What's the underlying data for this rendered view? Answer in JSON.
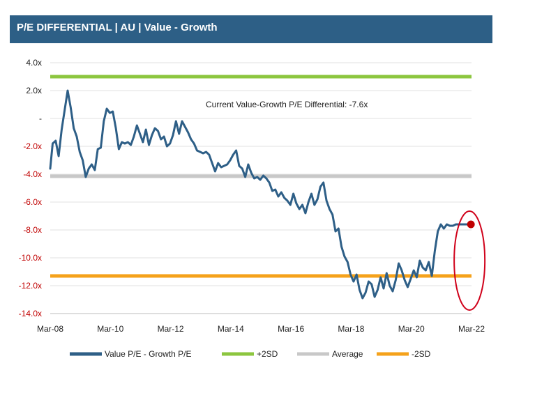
{
  "chart_data": {
    "type": "line",
    "title": "P/E DIFFERENTIAL | AU | Value - Growth",
    "xlabel": "",
    "ylabel": "",
    "ylim": [
      -14,
      4
    ],
    "y_ticks": [
      "4.0x",
      "2.0x",
      "-",
      "-2.0x",
      "-4.0x",
      "-6.0x",
      "-8.0x",
      "-10.0x",
      "-12.0x",
      "-14.0x"
    ],
    "y_tick_values": [
      4,
      2,
      0,
      -2,
      -4,
      -6,
      -8,
      -10,
      -12,
      -14
    ],
    "x_ticks": [
      "Mar-08",
      "Mar-10",
      "Mar-12",
      "Mar-14",
      "Mar-16",
      "Mar-18",
      "Mar-20",
      "Mar-22"
    ],
    "x_tick_values": [
      2008.17,
      2010.17,
      2012.17,
      2014.17,
      2016.17,
      2018.17,
      2020.17,
      2022.17
    ],
    "annotation": "Current Value-Growth P/E Differential: -7.6x",
    "colors": {
      "main": "#2e5f87",
      "plus2sd": "#8cc63f",
      "average": "#c8c8c8",
      "minus2sd": "#f5a21b",
      "current": "#c00000",
      "negative_tick": "#c00000",
      "positive_tick": "#222222"
    },
    "reference_lines": [
      {
        "name": "+2SD",
        "value": 3.0
      },
      {
        "name": "Average",
        "value": -4.15
      },
      {
        "name": "-2SD",
        "value": -11.3
      }
    ],
    "current_point": {
      "x": 2022.15,
      "y": -7.6
    },
    "series": [
      {
        "name": "Value P/E - Growth P/E",
        "x": [
          2008.17,
          2008.25,
          2008.35,
          2008.45,
          2008.55,
          2008.65,
          2008.75,
          2008.85,
          2008.95,
          2009.05,
          2009.15,
          2009.25,
          2009.35,
          2009.45,
          2009.55,
          2009.65,
          2009.75,
          2009.85,
          2009.95,
          2010.05,
          2010.15,
          2010.25,
          2010.35,
          2010.45,
          2010.55,
          2010.65,
          2010.75,
          2010.85,
          2010.95,
          2011.05,
          2011.15,
          2011.25,
          2011.35,
          2011.45,
          2011.55,
          2011.65,
          2011.75,
          2011.85,
          2011.95,
          2012.05,
          2012.15,
          2012.25,
          2012.35,
          2012.45,
          2012.55,
          2012.65,
          2012.75,
          2012.85,
          2012.95,
          2013.05,
          2013.15,
          2013.25,
          2013.35,
          2013.45,
          2013.55,
          2013.65,
          2013.75,
          2013.85,
          2013.95,
          2014.05,
          2014.15,
          2014.25,
          2014.35,
          2014.45,
          2014.55,
          2014.65,
          2014.75,
          2014.85,
          2014.95,
          2015.05,
          2015.15,
          2015.25,
          2015.35,
          2015.45,
          2015.55,
          2015.65,
          2015.75,
          2015.85,
          2015.95,
          2016.05,
          2016.15,
          2016.25,
          2016.35,
          2016.45,
          2016.55,
          2016.65,
          2016.75,
          2016.85,
          2016.95,
          2017.05,
          2017.15,
          2017.25,
          2017.35,
          2017.45,
          2017.55,
          2017.65,
          2017.75,
          2017.85,
          2017.95,
          2018.05,
          2018.15,
          2018.25,
          2018.35,
          2018.45,
          2018.55,
          2018.65,
          2018.75,
          2018.85,
          2018.95,
          2019.05,
          2019.15,
          2019.25,
          2019.35,
          2019.45,
          2019.55,
          2019.65,
          2019.75,
          2019.85,
          2019.95,
          2020.05,
          2020.15,
          2020.25,
          2020.35,
          2020.45,
          2020.55,
          2020.65,
          2020.75,
          2020.85,
          2020.95,
          2021.05,
          2021.15,
          2021.25,
          2021.35,
          2021.45,
          2021.55,
          2021.65,
          2021.75,
          2021.85,
          2021.95,
          2022.05,
          2022.15
        ],
        "values": [
          -3.6,
          -1.8,
          -1.6,
          -2.7,
          -0.8,
          0.6,
          2.0,
          0.8,
          -0.7,
          -1.3,
          -2.4,
          -3.0,
          -4.2,
          -3.6,
          -3.3,
          -3.7,
          -2.2,
          -2.1,
          -0.2,
          0.7,
          0.4,
          0.5,
          -0.7,
          -2.2,
          -1.7,
          -1.8,
          -1.7,
          -1.9,
          -1.3,
          -0.5,
          -1.1,
          -1.7,
          -0.8,
          -1.9,
          -1.2,
          -0.7,
          -0.9,
          -1.5,
          -1.3,
          -2.0,
          -1.8,
          -1.2,
          -0.2,
          -1.1,
          -0.2,
          -0.6,
          -1.0,
          -1.5,
          -1.8,
          -2.3,
          -2.4,
          -2.5,
          -2.4,
          -2.6,
          -3.2,
          -3.8,
          -3.2,
          -3.5,
          -3.4,
          -3.3,
          -3.0,
          -2.6,
          -2.3,
          -3.4,
          -3.6,
          -4.2,
          -3.3,
          -3.9,
          -4.3,
          -4.2,
          -4.4,
          -4.1,
          -4.3,
          -4.6,
          -5.2,
          -5.1,
          -5.6,
          -5.3,
          -5.7,
          -5.9,
          -6.2,
          -5.4,
          -6.1,
          -6.5,
          -6.2,
          -6.8,
          -6.0,
          -5.4,
          -6.2,
          -5.8,
          -4.9,
          -4.6,
          -5.9,
          -6.5,
          -6.9,
          -8.1,
          -7.9,
          -9.2,
          -9.9,
          -10.3,
          -11.2,
          -11.7,
          -11.2,
          -12.3,
          -12.9,
          -12.5,
          -11.7,
          -11.9,
          -12.8,
          -12.3,
          -11.4,
          -12.2,
          -11.1,
          -12.0,
          -12.4,
          -11.6,
          -10.4,
          -10.9,
          -11.6,
          -12.1,
          -11.5,
          -10.9,
          -11.4,
          -10.2,
          -10.7,
          -10.9,
          -10.3,
          -11.3,
          -9.5,
          -8.1,
          -7.6,
          -7.9,
          -7.6,
          -7.7,
          -7.7,
          -7.6,
          -7.6,
          -7.6,
          -7.6,
          -7.6,
          -7.6
        ]
      }
    ],
    "legend": [
      {
        "label": "Value P/E - Growth P/E",
        "color": "#2e5f87"
      },
      {
        "label": "+2SD",
        "color": "#8cc63f"
      },
      {
        "label": "Average",
        "color": "#c8c8c8"
      },
      {
        "label": "-2SD",
        "color": "#f5a21b"
      }
    ]
  }
}
